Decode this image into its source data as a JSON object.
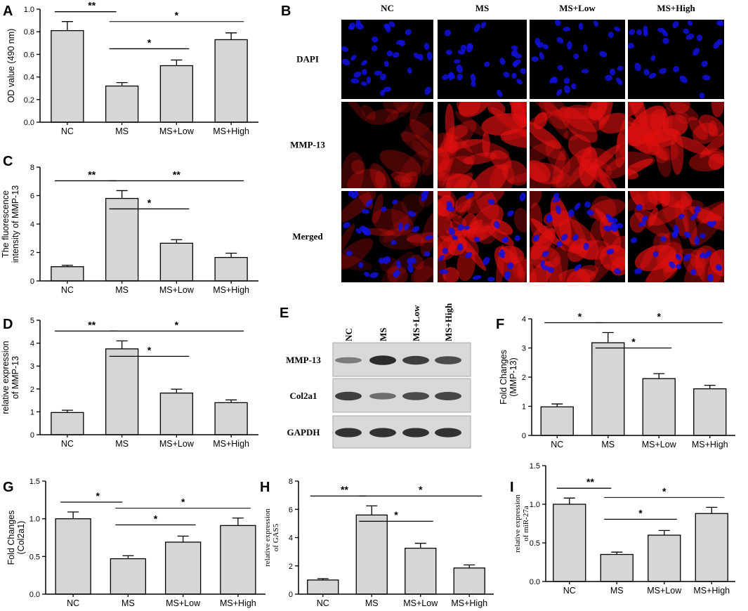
{
  "colors": {
    "bar_fill": "#d6d6d6",
    "bar_stroke": "#000000",
    "dapi": "#1010e0",
    "mmp13": "#e01010",
    "blot_bg": "#d9d9d9",
    "band": "#1a1a1a"
  },
  "chart_data": [
    {
      "id": "A",
      "letter": "A",
      "type": "bar",
      "categories": [
        "NC",
        "MS",
        "MS+Low",
        "MS+High"
      ],
      "values": [
        0.81,
        0.32,
        0.5,
        0.73
      ],
      "errors": [
        0.08,
        0.03,
        0.05,
        0.06
      ],
      "ylabel": "OD value (490 nm)",
      "ylim": [
        0,
        1.0
      ],
      "yticks": [
        "0.0",
        "0.2",
        "0.4",
        "0.6",
        "0.8",
        "1.0"
      ],
      "brackets": [
        {
          "from": 0,
          "to": 1,
          "label": "**"
        },
        {
          "from": 1,
          "to": 3,
          "label": "*"
        },
        {
          "from": 1,
          "to": 2,
          "label": "*"
        }
      ]
    },
    {
      "id": "C",
      "letter": "C",
      "type": "bar",
      "categories": [
        "NC",
        "MS",
        "MS+Low",
        "MS+High"
      ],
      "values": [
        1.0,
        5.8,
        2.65,
        1.65
      ],
      "errors": [
        0.1,
        0.55,
        0.25,
        0.3
      ],
      "ylabel": [
        "The fluorescence",
        "intensity of MMP-13"
      ],
      "ylim": [
        0,
        8
      ],
      "yticks": [
        "0",
        "2",
        "4",
        "6",
        "8"
      ],
      "brackets": [
        {
          "from": 0,
          "to": 1,
          "label": "**"
        },
        {
          "from": 1,
          "to": 3,
          "label": "**"
        },
        {
          "from": 1,
          "to": 2,
          "label": "*"
        }
      ]
    },
    {
      "id": "D",
      "letter": "D",
      "type": "bar",
      "categories": [
        "NC",
        "MS",
        "MS+Low",
        "MS+High"
      ],
      "values": [
        0.97,
        3.75,
        1.82,
        1.4
      ],
      "errors": [
        0.1,
        0.35,
        0.17,
        0.12
      ],
      "ylabel": [
        "relative expression",
        "of MMP-13"
      ],
      "ylim": [
        0,
        5
      ],
      "yticks": [
        "0",
        "1",
        "2",
        "3",
        "4",
        "5"
      ],
      "brackets": [
        {
          "from": 0,
          "to": 1,
          "label": "**"
        },
        {
          "from": 1,
          "to": 3,
          "label": "*"
        },
        {
          "from": 1,
          "to": 2,
          "label": "*"
        }
      ]
    },
    {
      "id": "F",
      "letter": "F",
      "type": "bar",
      "categories": [
        "NC",
        "MS",
        "MS+Low",
        "MS+High"
      ],
      "values": [
        0.98,
        3.18,
        1.95,
        1.6
      ],
      "errors": [
        0.1,
        0.35,
        0.17,
        0.12
      ],
      "ylabel": [
        "Fold Changes",
        "(MMP-13)"
      ],
      "ylim": [
        0,
        4
      ],
      "yticks": [
        "0",
        "1",
        "2",
        "3",
        "4"
      ],
      "brackets": [
        {
          "from": 0,
          "to": 1,
          "label": "*"
        },
        {
          "from": 1,
          "to": 3,
          "label": "*"
        },
        {
          "from": 1,
          "to": 2,
          "label": "*"
        }
      ]
    },
    {
      "id": "G",
      "letter": "G",
      "type": "bar",
      "categories": [
        "NC",
        "MS",
        "MS+Low",
        "MS+High"
      ],
      "values": [
        1.0,
        0.47,
        0.69,
        0.91
      ],
      "errors": [
        0.09,
        0.04,
        0.08,
        0.1
      ],
      "ylabel": [
        "Fold Changes",
        "(Col2a1)"
      ],
      "ylim": [
        0,
        1.5
      ],
      "yticks": [
        "0.0",
        "0.5",
        "1.0",
        "1.5"
      ],
      "brackets": [
        {
          "from": 0,
          "to": 1,
          "label": "*"
        },
        {
          "from": 1,
          "to": 3,
          "label": "*"
        },
        {
          "from": 1,
          "to": 2,
          "label": "*"
        }
      ]
    },
    {
      "id": "H",
      "letter": "H",
      "type": "bar",
      "categories": [
        "NC",
        "MS",
        "MS+Low",
        "MS+High"
      ],
      "values": [
        1.0,
        5.6,
        3.25,
        1.85
      ],
      "errors": [
        0.1,
        0.65,
        0.35,
        0.22
      ],
      "ylabel": [
        "relative expression",
        "of GAS5"
      ],
      "ylim": [
        0,
        8
      ],
      "yticks": [
        "0",
        "2",
        "4",
        "6",
        "8"
      ],
      "brackets": [
        {
          "from": 0,
          "to": 1,
          "label": "**"
        },
        {
          "from": 1,
          "to": 3,
          "label": "*"
        },
        {
          "from": 1,
          "to": 2,
          "label": "*"
        }
      ]
    },
    {
      "id": "I",
      "letter": "I",
      "type": "bar",
      "categories": [
        "NC",
        "MS",
        "MS+Low",
        "MS+High"
      ],
      "values": [
        1.0,
        0.35,
        0.6,
        0.88
      ],
      "errors": [
        0.08,
        0.03,
        0.06,
        0.08
      ],
      "ylabel": [
        "relative expression",
        "of miR-27a"
      ],
      "ylim": [
        0,
        1.5
      ],
      "yticks": [
        "0.0",
        "0.5",
        "1.0",
        "1.5"
      ],
      "brackets": [
        {
          "from": 0,
          "to": 1,
          "label": "**"
        },
        {
          "from": 1,
          "to": 3,
          "label": "*"
        },
        {
          "from": 1,
          "to": 2,
          "label": "*"
        }
      ]
    }
  ],
  "panel_b": {
    "letter": "B",
    "columns": [
      "NC",
      "MS",
      "MS+Low",
      "MS+High"
    ],
    "rows": [
      "DAPI",
      "MMP-13",
      "Merged"
    ]
  },
  "panel_e": {
    "letter": "E",
    "columns": [
      "NC",
      "MS",
      "MS+Low",
      "MS+High"
    ],
    "rows": [
      "MMP-13",
      "Col2a1",
      "GAPDH"
    ],
    "band_intensity": [
      [
        0.35,
        0.95,
        0.8,
        0.7
      ],
      [
        0.8,
        0.45,
        0.7,
        0.75
      ],
      [
        0.9,
        0.9,
        0.9,
        0.9
      ]
    ]
  }
}
